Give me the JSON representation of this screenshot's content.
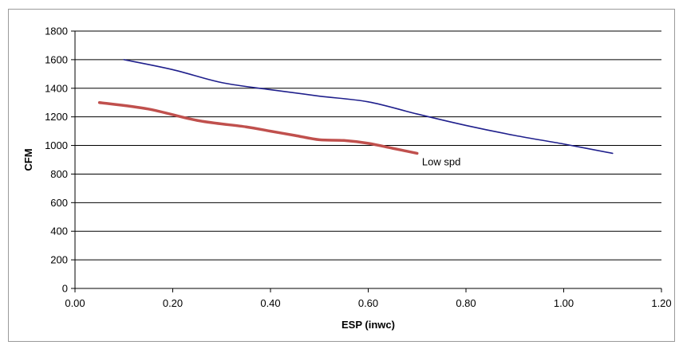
{
  "chart_data": {
    "type": "line",
    "xlabel": "ESP (inwc)",
    "ylabel": "CFM",
    "xlim": [
      0,
      1.2
    ],
    "ylim": [
      0,
      1800
    ],
    "x_ticks": [
      "0.00",
      "0.20",
      "0.40",
      "0.60",
      "0.80",
      "1.00",
      "1.20"
    ],
    "y_ticks": [
      "0",
      "200",
      "400",
      "600",
      "800",
      "1000",
      "1200",
      "1400",
      "1600",
      "1800"
    ],
    "grid": "horizontal",
    "legend": "none",
    "annotations": [
      {
        "text": "Low spd",
        "x": 0.71,
        "y": 860
      }
    ],
    "series": [
      {
        "color": "#1f1f8c",
        "points": [
          [
            0.1,
            1600
          ],
          [
            0.2,
            1530
          ],
          [
            0.3,
            1440
          ],
          [
            0.4,
            1390
          ],
          [
            0.5,
            1345
          ],
          [
            0.6,
            1305
          ],
          [
            0.7,
            1220
          ],
          [
            0.8,
            1140
          ],
          [
            0.9,
            1070
          ],
          [
            1.0,
            1010
          ],
          [
            1.1,
            945
          ]
        ]
      },
      {
        "color": "#c0504d",
        "points": [
          [
            0.05,
            1300
          ],
          [
            0.15,
            1255
          ],
          [
            0.25,
            1175
          ],
          [
            0.35,
            1130
          ],
          [
            0.4,
            1100
          ],
          [
            0.45,
            1070
          ],
          [
            0.5,
            1040
          ],
          [
            0.55,
            1035
          ],
          [
            0.6,
            1015
          ],
          [
            0.65,
            980
          ],
          [
            0.7,
            945
          ]
        ]
      }
    ]
  }
}
